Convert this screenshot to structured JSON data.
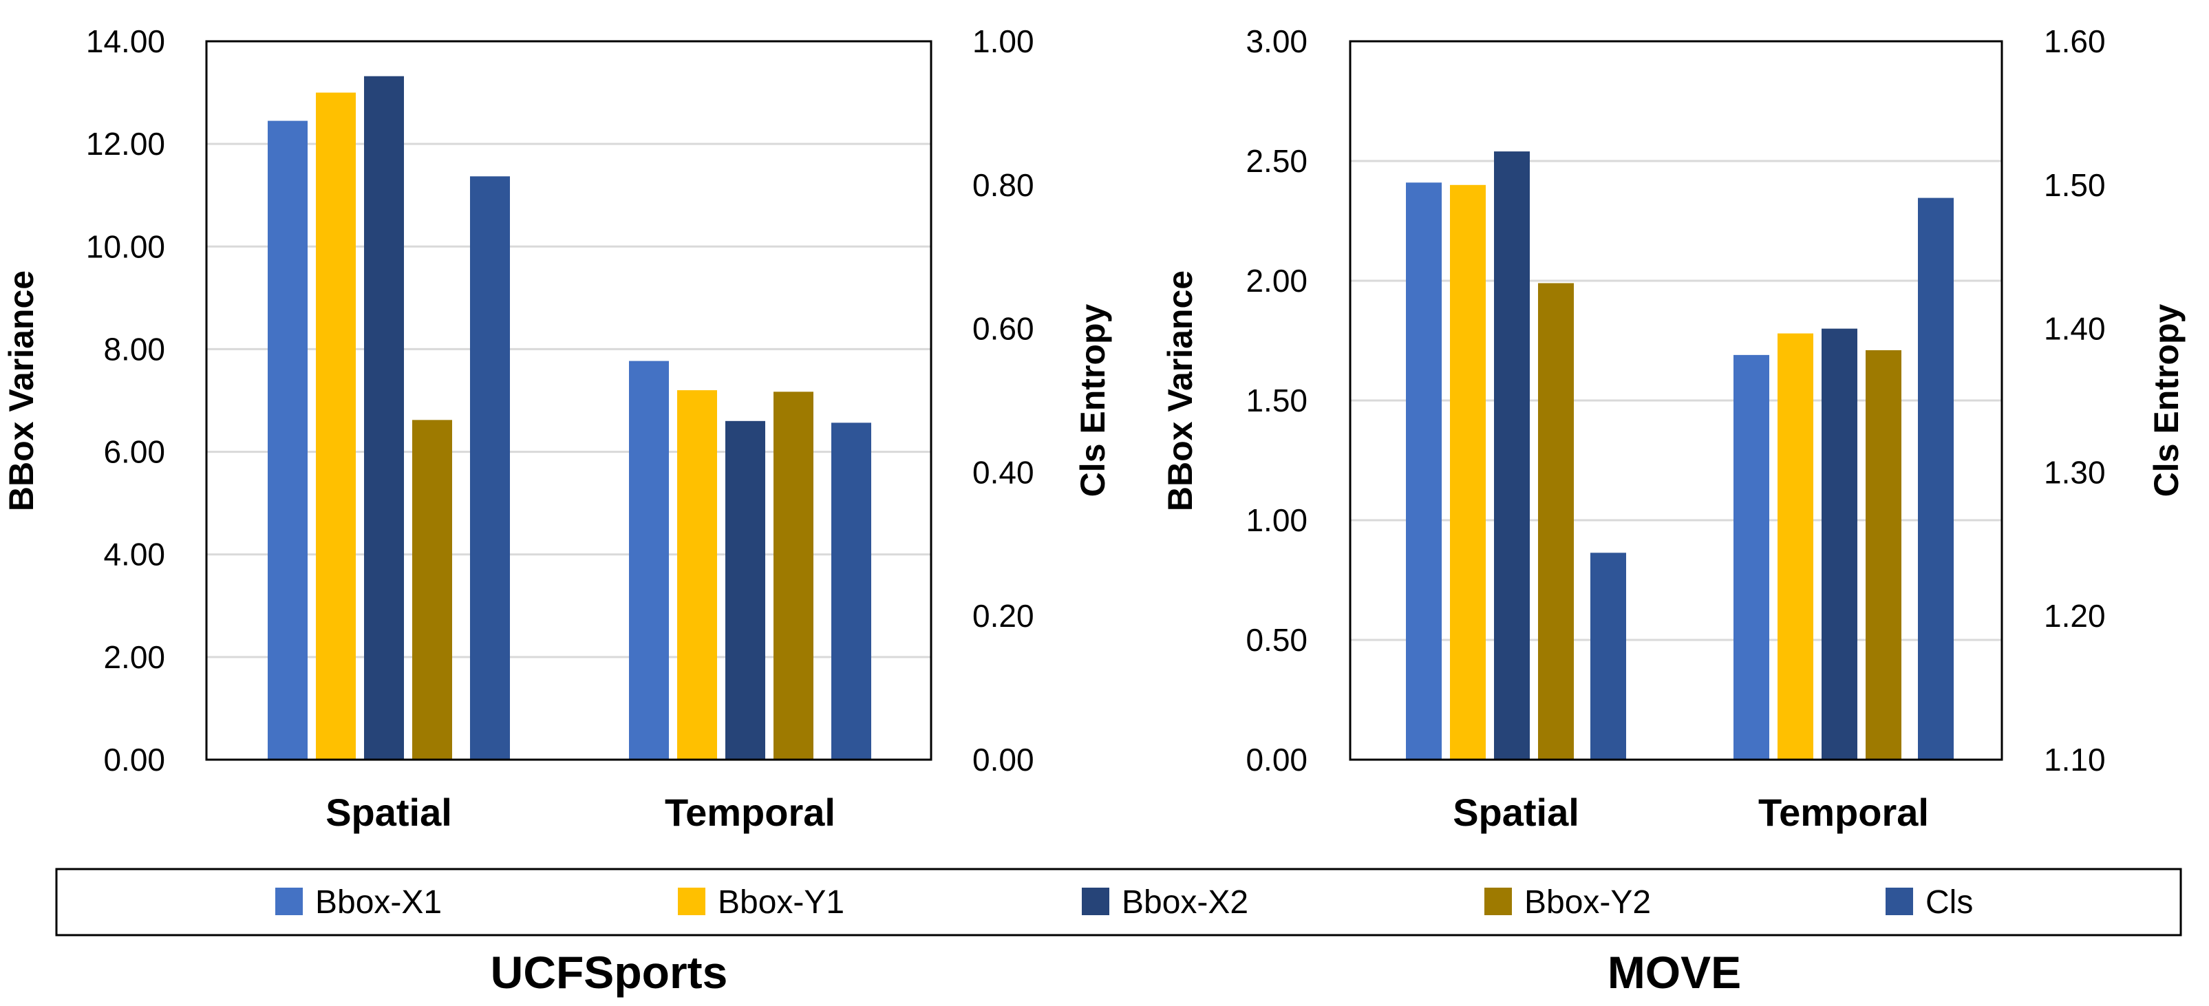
{
  "colors": {
    "Bbox-X1": "#4472C4",
    "Bbox-Y1": "#FFC000",
    "Bbox-X2": "#264478",
    "Bbox-Y2": "#9E7A00",
    "Cls": "#2F5597",
    "grid": "#D9D9D9",
    "frame": "#000000"
  },
  "legend": [
    "Bbox-X1",
    "Bbox-Y1",
    "Bbox-X2",
    "Bbox-Y2",
    "Cls"
  ],
  "chart_data": [
    {
      "type": "bar",
      "title": "UCFSports",
      "categories": [
        "Spatial",
        "Temporal"
      ],
      "ylabel": "BBox Variance",
      "y2label": "Cls Entropy",
      "ylim": [
        0,
        14
      ],
      "yticks": [
        "0.00",
        "2.00",
        "4.00",
        "6.00",
        "8.00",
        "10.00",
        "12.00",
        "14.00"
      ],
      "y2lim": [
        0,
        1
      ],
      "y2ticks": [
        "0.00",
        "0.20",
        "0.40",
        "0.60",
        "0.80",
        "1.00"
      ],
      "series": [
        {
          "name": "Bbox-X1",
          "axis": "left",
          "values": [
            12.45,
            7.77
          ]
        },
        {
          "name": "Bbox-Y1",
          "axis": "left",
          "values": [
            13.0,
            7.2
          ]
        },
        {
          "name": "Bbox-X2",
          "axis": "left",
          "values": [
            13.32,
            6.6
          ]
        },
        {
          "name": "Bbox-Y2",
          "axis": "left",
          "values": [
            6.62,
            7.17
          ]
        },
        {
          "name": "Cls",
          "axis": "right",
          "values": [
            0.812,
            0.469
          ]
        }
      ]
    },
    {
      "type": "bar",
      "title": "MOVE",
      "categories": [
        "Spatial",
        "Temporal"
      ],
      "ylabel": "BBox Variance",
      "y2label": "Cls Entropy",
      "ylim": [
        0,
        3
      ],
      "yticks": [
        "0.00",
        "0.50",
        "1.00",
        "1.50",
        "2.00",
        "2.50",
        "3.00"
      ],
      "y2lim": [
        1.1,
        1.6
      ],
      "y2ticks": [
        "1.10",
        "1.20",
        "1.30",
        "1.40",
        "1.50",
        "1.60"
      ],
      "series": [
        {
          "name": "Bbox-X1",
          "axis": "left",
          "values": [
            2.41,
            1.69
          ]
        },
        {
          "name": "Bbox-Y1",
          "axis": "left",
          "values": [
            2.4,
            1.78
          ]
        },
        {
          "name": "Bbox-X2",
          "axis": "left",
          "values": [
            2.54,
            1.8
          ]
        },
        {
          "name": "Bbox-Y2",
          "axis": "left",
          "values": [
            1.99,
            1.71
          ]
        },
        {
          "name": "Cls",
          "axis": "right",
          "values": [
            1.244,
            1.491
          ]
        }
      ]
    }
  ]
}
